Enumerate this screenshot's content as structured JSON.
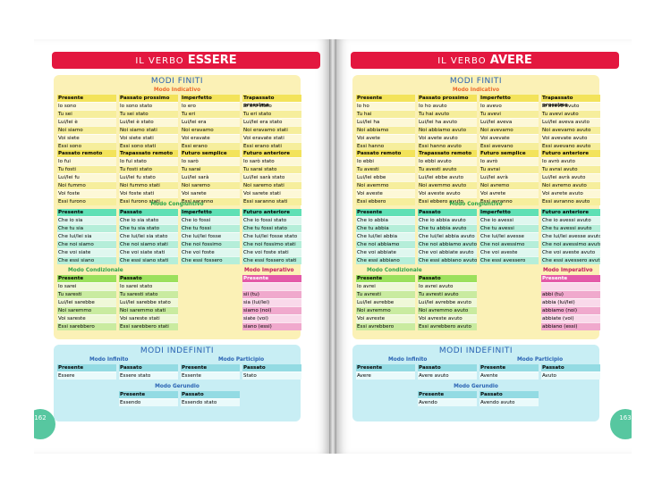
{
  "essere": {
    "banner_pre": "IL VERBO",
    "banner_verb": "ESSERE",
    "modi_finiti": "MODI FINITI",
    "modo_indicativo": "Modo Indicativo",
    "presente": {
      "h": "Presente",
      "rows": [
        "Io sono",
        "Tu sei",
        "Lui/lei è",
        "Noi siamo",
        "Voi siete",
        "Essi sono"
      ]
    },
    "passato_prossimo": {
      "h": "Passato prossimo",
      "rows": [
        "Io sono stato",
        "Tu sei stato",
        "Lui/lei è stato",
        "Noi siamo stati",
        "Voi siete stati",
        "Essi sono stati"
      ]
    },
    "imperfetto": {
      "h": "Imperfetto",
      "rows": [
        "Io ero",
        "Tu eri",
        "Lui/lei era",
        "Noi eravamo",
        "Voi eravate",
        "Essi erano"
      ]
    },
    "trapassato_prossimo": {
      "h": "Trapassato prossimo",
      "rows": [
        "Io ero stato",
        "Tu eri stato",
        "Lui/lei era stato",
        "Noi eravamo stati",
        "Voi eravate stati",
        "Essi erano stati"
      ]
    },
    "passato_remoto": {
      "h": "Passato remoto",
      "rows": [
        "Io fui",
        "Tu fosti",
        "Lui/lei fu",
        "Noi fummo",
        "Voi foste",
        "Essi furono"
      ]
    },
    "trapassato_remoto": {
      "h": "Trapassato remoto",
      "rows": [
        "Io fui stato",
        "Tu fosti stato",
        "Lui/lei fu stato",
        "Noi fummo stati",
        "Voi foste stati",
        "Essi furono stati"
      ]
    },
    "futuro_semplice": {
      "h": "Futuro semplice",
      "rows": [
        "Io sarò",
        "Tu sarai",
        "Lui/lei sarà",
        "Noi saremo",
        "Voi sarete",
        "Essi saranno"
      ]
    },
    "futuro_anteriore": {
      "h": "Futuro anteriore",
      "rows": [
        "Io sarò stato",
        "Tu sarai stato",
        "Lui/lei sarà stato",
        "Noi saremo stati",
        "Voi sarete stati",
        "Essi saranno stati"
      ]
    },
    "modo_congiuntivo": "Modo Congiuntivo",
    "cong_presente": {
      "h": "Presente",
      "rows": [
        "Che io sia",
        "Che tu sia",
        "Che lui/lei sia",
        "Che noi siamo",
        "Che voi siate",
        "Che essi siano"
      ]
    },
    "cong_passato": {
      "h": "Passato",
      "rows": [
        "Che io sia stato",
        "Che tu sia stato",
        "Che lui/lei sia stato",
        "Che noi siamo stati",
        "Che voi siate stati",
        "Che essi siano stati"
      ]
    },
    "cong_imperfetto": {
      "h": "Imperfetto",
      "rows": [
        "Che io fossi",
        "Che tu fossi",
        "Che lui/lei fosse",
        "Che noi fossimo",
        "Che voi foste",
        "Che essi fossero"
      ]
    },
    "cong_futuro": {
      "h": "Futuro anteriore",
      "rows": [
        "Che io fossi stato",
        "Che tu fossi stato",
        "Che lui/lei fosse stato",
        "Che noi fossimo stati",
        "Che voi foste stati",
        "Che essi fossero stati"
      ]
    },
    "modo_condizionale": "Modo Condizionale",
    "cond_presente": {
      "h": "Presente",
      "rows": [
        "Io sarei",
        "Tu saresti",
        "Lui/lei sarebbe",
        "Noi saremmo",
        "Voi sareste",
        "Essi sarebbero"
      ]
    },
    "cond_passato": {
      "h": "Passato",
      "rows": [
        "Io sarei stato",
        "Tu saresti stato",
        "Lui/lei sarebbe stato",
        "Noi saremmo stati",
        "Voi sareste stati",
        "Essi sarebbero stati"
      ]
    },
    "modo_imperativo": "Modo Imperativo",
    "imp_presente": {
      "h": "Presente",
      "rows": [
        "",
        "sii (tu)",
        "sia (lui/lei)",
        "siamo (noi)",
        "siate (voi)",
        "siano (essi)"
      ]
    },
    "modi_indefiniti": "MODI INDEFINITI",
    "modo_infinito": "Modo Infinito",
    "inf_presente": {
      "h": "Presente",
      "rows": [
        "Essere"
      ]
    },
    "inf_passato": {
      "h": "Passato",
      "rows": [
        "Essere stato"
      ]
    },
    "modo_participio": "Modo Participio",
    "part_presente": {
      "h": "Presente",
      "rows": [
        "Essente"
      ]
    },
    "part_passato": {
      "h": "Passato",
      "rows": [
        "Stato"
      ]
    },
    "modo_gerundio": "Modo Gerundio",
    "ger_presente": {
      "h": "Presente",
      "rows": [
        "Essendo"
      ]
    },
    "ger_passato": {
      "h": "Passato",
      "rows": [
        "Essendo stato"
      ]
    },
    "page_number": "162"
  },
  "avere": {
    "banner_pre": "IL VERBO",
    "banner_verb": "AVERE",
    "modi_finiti": "MODI FINITI",
    "modo_indicativo": "Modo Indicativo",
    "presente": {
      "h": "Presente",
      "rows": [
        "Io ho",
        "Tu hai",
        "Lui/lei ha",
        "Noi abbiamo",
        "Voi avete",
        "Essi hanno"
      ]
    },
    "passato_prossimo": {
      "h": "Passato prossimo",
      "rows": [
        "Io ho avuto",
        "Tu hai avuto",
        "Lui/lei ha avuto",
        "Noi abbiamo avuto",
        "Voi avete avuto",
        "Essi hanno avuto"
      ]
    },
    "imperfetto": {
      "h": "Imperfetto",
      "rows": [
        "Io avevo",
        "Tu avevi",
        "Lui/lei aveva",
        "Noi avevamo",
        "Voi avevate",
        "Essi avevano"
      ]
    },
    "trapassato_prossimo": {
      "h": "Trapassato prossimo",
      "rows": [
        "Io avevo avuto",
        "Tu avevi avuto",
        "Lui/lei aveva avuto",
        "Noi avevamo avuto",
        "Voi avevate avuto",
        "Essi avevano avuto"
      ]
    },
    "passato_remoto": {
      "h": "Passato remoto",
      "rows": [
        "Io ebbi",
        "Tu avesti",
        "Lui/lei ebbe",
        "Noi avemmo",
        "Voi aveste",
        "Essi ebbero"
      ]
    },
    "trapassato_remoto": {
      "h": "Trapassato remoto",
      "rows": [
        "Io ebbi avuto",
        "Tu avesti avuto",
        "Lui/lei ebbe avuto",
        "Noi avemmo avuto",
        "Voi aveste avuto",
        "Essi ebbero avuto"
      ]
    },
    "futuro_semplice": {
      "h": "Futuro semplice",
      "rows": [
        "Io avrò",
        "Tu avrai",
        "Lui/lei avrà",
        "Noi avremo",
        "Voi avrete",
        "Essi avranno"
      ]
    },
    "futuro_anteriore": {
      "h": "Futuro anteriore",
      "rows": [
        "Io avrò avuto",
        "Tu avrai avuto",
        "Lui/lei avrà avuto",
        "Noi avremo avuto",
        "Voi avrete avuto",
        "Essi avranno avuto"
      ]
    },
    "modo_congiuntivo": "Modo Congiuntivo",
    "cong_presente": {
      "h": "Presente",
      "rows": [
        "Che io abbia",
        "Che tu abbia",
        "Che lui/lei abbia",
        "Che noi abbiamo",
        "Che voi abbiate",
        "Che essi abbiano"
      ]
    },
    "cong_passato": {
      "h": "Passato",
      "rows": [
        "Che io abbia avuto",
        "Che tu abbia avuto",
        "Che lui/lei abbia avuto",
        "Che noi abbiamo avuto",
        "Che voi abbiate avuto",
        "Che essi abbiano avuto"
      ]
    },
    "cong_imperfetto": {
      "h": "Imperfetto",
      "rows": [
        "Che io avessi",
        "Che tu avessi",
        "Che lui/lei avesse",
        "Che noi avessimo",
        "Che voi aveste",
        "Che essi avessero"
      ]
    },
    "cong_futuro": {
      "h": "Futuro anteriore",
      "rows": [
        "Che io avessi avuto",
        "Che tu avessi avuto",
        "Che lui/lei avesse avuto",
        "Che noi avessimo avuto",
        "Che voi aveste avuto",
        "Che essi avessero avuto"
      ]
    },
    "modo_condizionale": "Modo Condizionale",
    "cond_presente": {
      "h": "Presente",
      "rows": [
        "Io avrei",
        "Tu avresti",
        "Lui/lei avrebbe",
        "Noi avremmo",
        "Voi avreste",
        "Essi avrebbero"
      ]
    },
    "cond_passato": {
      "h": "Passato",
      "rows": [
        "Io avrei avuto",
        "Tu avresti avuto",
        "Lui/lei avrebbe avuto",
        "Noi avremmo avuto",
        "Voi avreste avuto",
        "Essi avrebbero avuto"
      ]
    },
    "modo_imperativo": "Modo Imperativo",
    "imp_presente": {
      "h": "Presente",
      "rows": [
        "",
        "abbi (tu)",
        "abbia (lui/lei)",
        "abbiamo (noi)",
        "abbiate (voi)",
        "abbiano (essi)"
      ]
    },
    "modi_indefiniti": "MODI INDEFINITI",
    "modo_infinito": "Modo Infinito",
    "inf_presente": {
      "h": "Presente",
      "rows": [
        "Avere"
      ]
    },
    "inf_passato": {
      "h": "Passato",
      "rows": [
        "Avere avuto"
      ]
    },
    "modo_participio": "Modo Participio",
    "part_presente": {
      "h": "Presente",
      "rows": [
        "Avente"
      ]
    },
    "part_passato": {
      "h": "Passato",
      "rows": [
        "Avuto"
      ]
    },
    "modo_gerundio": "Modo Gerundio",
    "ger_presente": {
      "h": "Presente",
      "rows": [
        "Avendo"
      ]
    },
    "ger_passato": {
      "h": "Passato",
      "rows": [
        "Avendo avuto"
      ]
    },
    "page_number": "163"
  }
}
